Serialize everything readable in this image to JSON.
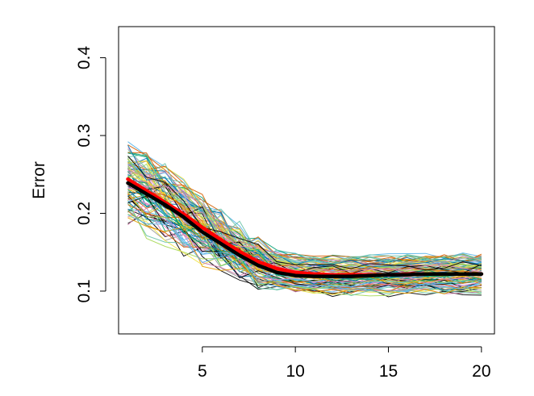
{
  "chart_data": {
    "type": "line",
    "title": "",
    "xlabel": "",
    "ylabel": "Error",
    "xlim": [
      0.5,
      20.7
    ],
    "ylim": [
      0.045,
      0.44
    ],
    "x_ticks": [
      5,
      10,
      15,
      20
    ],
    "x_tick_labels": [
      "5",
      "10",
      "15",
      "20"
    ],
    "y_ticks": [
      0.1,
      0.2,
      0.3,
      0.4
    ],
    "y_tick_labels": [
      "0.1",
      "0.2",
      "0.3",
      "0.4"
    ],
    "grid": false,
    "legend": "none",
    "x": [
      1,
      2,
      3,
      4,
      5,
      6,
      7,
      8,
      9,
      10,
      11,
      12,
      13,
      14,
      15,
      16,
      17,
      18,
      19,
      20
    ],
    "background_series_count": 100,
    "background_series_note": "approximately 100 thin colored lines forming a band around the two summary lines",
    "background_palette": [
      "#000000",
      "#E69F00",
      "#56B4E9",
      "#009E73",
      "#F0E442",
      "#0072B2",
      "#D55E00",
      "#CC79A7",
      "#999999",
      "#66C2A5",
      "#E78AC3",
      "#A6D854"
    ],
    "series": [
      {
        "color": "#ff0000",
        "values": [
          0.244,
          0.229,
          0.214,
          0.199,
          0.182,
          0.166,
          0.151,
          0.138,
          0.129,
          0.124,
          0.122,
          0.121,
          0.121,
          0.121,
          0.121,
          0.122,
          0.122,
          0.122,
          0.122,
          0.122
        ]
      },
      {
        "color": "#000000",
        "values": [
          0.239,
          0.225,
          0.211,
          0.195,
          0.176,
          0.161,
          0.146,
          0.133,
          0.124,
          0.12,
          0.119,
          0.119,
          0.119,
          0.12,
          0.121,
          0.121,
          0.122,
          0.122,
          0.122,
          0.122
        ]
      }
    ]
  }
}
